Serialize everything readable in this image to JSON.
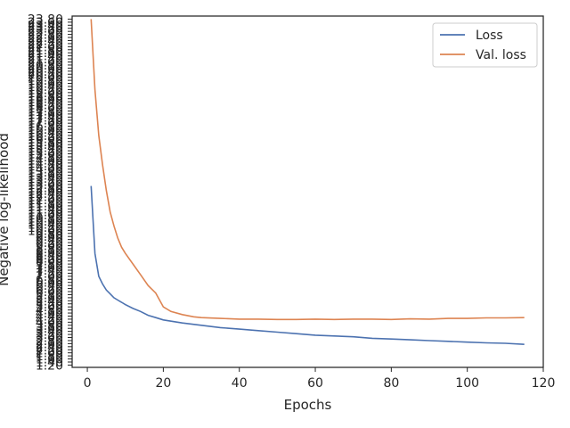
{
  "chart_data": {
    "type": "line",
    "xlabel": "Epochs",
    "ylabel": "Negative log-likelihood",
    "xlim": [
      -4,
      120
    ],
    "ylim": [
      1.05,
      24.0
    ],
    "x_ticks": [
      0,
      20,
      40,
      60,
      80,
      100,
      120
    ],
    "y_tick_labels_legible": [
      {
        "value": 1.2,
        "label": "1.20"
      },
      {
        "value": 1.4,
        "label": "1.40"
      },
      {
        "value": 1.6,
        "label": "1.60"
      },
      {
        "value": 1.8,
        "label": "1.80"
      },
      {
        "value": 2.0,
        "label": "2.00"
      }
    ],
    "y_tick_dense_start": 2.2,
    "y_tick_dense_step": 0.2,
    "y_tick_dense_end": 23.8,
    "grid": false,
    "legend_position": "top-right",
    "series": [
      {
        "name": "Loss",
        "color": "#4c72b0",
        "x": [
          1,
          2,
          3,
          4,
          5,
          6,
          7,
          8,
          9,
          10,
          12,
          14,
          16,
          18,
          20,
          25,
          30,
          35,
          40,
          45,
          50,
          55,
          60,
          65,
          70,
          75,
          80,
          85,
          90,
          95,
          100,
          105,
          110,
          115
        ],
        "y": [
          12.9,
          8.5,
          7.0,
          6.5,
          6.1,
          5.85,
          5.6,
          5.45,
          5.3,
          5.15,
          4.9,
          4.7,
          4.45,
          4.3,
          4.15,
          3.95,
          3.8,
          3.65,
          3.55,
          3.45,
          3.35,
          3.25,
          3.15,
          3.1,
          3.05,
          2.95,
          2.9,
          2.85,
          2.8,
          2.75,
          2.7,
          2.65,
          2.62,
          2.55
        ]
      },
      {
        "name": "Val. loss",
        "color": "#dd8452",
        "x": [
          1,
          2,
          3,
          4,
          5,
          6,
          7,
          8,
          9,
          10,
          12,
          14,
          16,
          18,
          20,
          22,
          25,
          28,
          30,
          35,
          40,
          45,
          50,
          55,
          60,
          65,
          70,
          75,
          80,
          85,
          90,
          95,
          100,
          105,
          110,
          115
        ],
        "y": [
          23.8,
          19.2,
          16.2,
          14.3,
          12.6,
          11.2,
          10.3,
          9.5,
          8.9,
          8.5,
          7.8,
          7.1,
          6.4,
          5.9,
          5.0,
          4.7,
          4.5,
          4.35,
          4.3,
          4.25,
          4.2,
          4.2,
          4.18,
          4.18,
          4.2,
          4.18,
          4.2,
          4.2,
          4.18,
          4.22,
          4.2,
          4.25,
          4.25,
          4.28,
          4.28,
          4.3
        ]
      }
    ]
  }
}
